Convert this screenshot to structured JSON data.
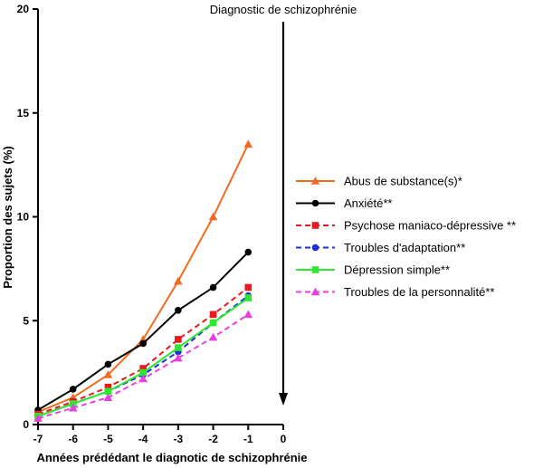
{
  "chart_data": {
    "type": "line",
    "title": "",
    "xlabel": "Années prédédant le diagnotic de schizophrénie",
    "ylabel": "Proportion des sujets (%)",
    "xlim": [
      -7,
      0
    ],
    "ylim": [
      0,
      20
    ],
    "x_ticks": [
      -7,
      -6,
      -5,
      -4,
      -3,
      -2,
      -1,
      0
    ],
    "y_ticks": [
      0,
      5,
      10,
      15,
      20
    ],
    "x_tick_labels": [
      "-7",
      "-6",
      "-5",
      "-4",
      "-3",
      "-2",
      "-1",
      "0"
    ],
    "y_tick_labels": [
      "0",
      "5",
      "10",
      "15",
      "20"
    ],
    "grid": false,
    "legend_position": "right",
    "annotation": {
      "text": "Diagnostic de schizophrénie",
      "x": 0
    },
    "x": [
      -7,
      -6,
      -5,
      -4,
      -3,
      -2,
      -1
    ],
    "series": [
      {
        "name": "Abus de substance(s)*",
        "color": "#f26b21",
        "dash": "solid",
        "marker": "triangle",
        "values": [
          0.6,
          1.3,
          2.4,
          4.1,
          6.9,
          10.0,
          13.5
        ]
      },
      {
        "name": "Anxiété**",
        "color": "#000000",
        "dash": "solid",
        "marker": "circle",
        "values": [
          0.7,
          1.7,
          2.9,
          3.9,
          5.5,
          6.6,
          8.3
        ]
      },
      {
        "name": "Psychose maniaco-dépressive **",
        "color": "#e8191f",
        "dash": "dashed",
        "marker": "square",
        "values": [
          0.5,
          1.1,
          1.8,
          2.7,
          4.1,
          5.3,
          6.6
        ]
      },
      {
        "name": "Troubles d'adaptation**",
        "color": "#1a2fe0",
        "dash": "dashed",
        "marker": "circle",
        "values": [
          0.4,
          1.0,
          1.6,
          2.4,
          3.5,
          4.9,
          6.2
        ]
      },
      {
        "name": "Dépression simple**",
        "color": "#2ee82e",
        "dash": "solid",
        "marker": "square",
        "values": [
          0.4,
          1.0,
          1.6,
          2.5,
          3.7,
          4.9,
          6.1
        ]
      },
      {
        "name": "Troubles de la personnalité**",
        "color": "#e840e0",
        "dash": "dashed",
        "marker": "triangle",
        "values": [
          0.3,
          0.8,
          1.3,
          2.2,
          3.2,
          4.2,
          5.3
        ]
      }
    ]
  }
}
